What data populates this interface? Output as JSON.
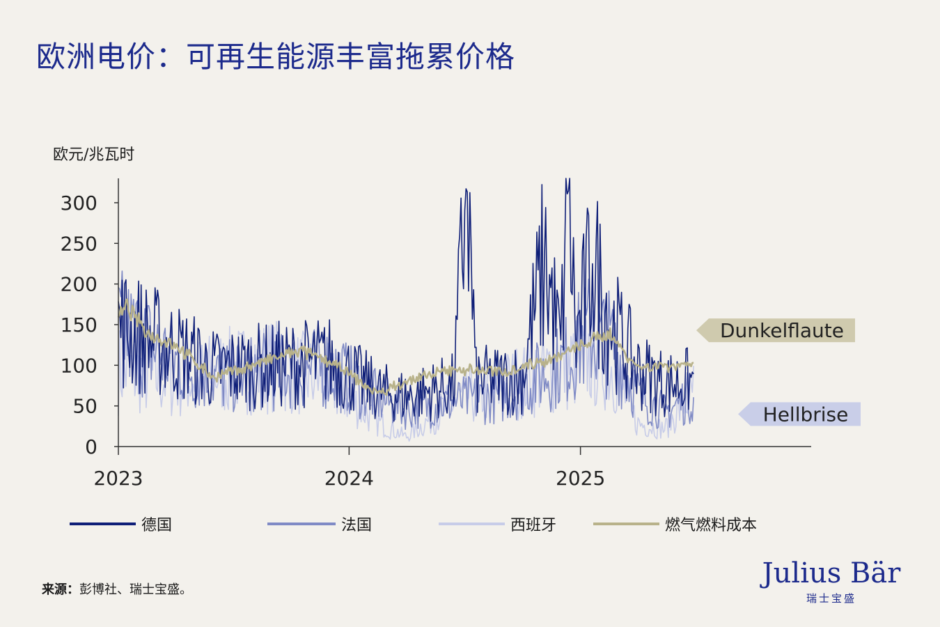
{
  "title": "欧洲电价：可再生能源丰富拖累价格",
  "source": {
    "label": "来源：",
    "text": "彭博社、瑞士宝盛。"
  },
  "logo": {
    "en": "Julius Bär",
    "cn": "瑞士宝盛"
  },
  "chart_data": {
    "type": "line",
    "ylabel": "欧元/兆瓦时",
    "ylim": [
      0,
      330
    ],
    "yticks": [
      0,
      50,
      100,
      150,
      200,
      250,
      300
    ],
    "xlim": [
      "2023-01-01",
      "2026-01-01"
    ],
    "xticks": [
      "2023",
      "2024",
      "2025"
    ],
    "grid": false,
    "legend": "bottom",
    "annotations": [
      {
        "text": "Dunkelflaute",
        "y": 143,
        "color": "#cfcaae"
      },
      {
        "text": "Hellbrise",
        "y": 40,
        "color": "#c9cee8"
      }
    ],
    "series": [
      {
        "name": "德国",
        "color": "#0f1f78",
        "keypoints": [
          [
            "2023-01-01",
            150
          ],
          [
            "2023-04-01",
            118
          ],
          [
            "2023-06-01",
            95
          ],
          [
            "2023-09-01",
            100
          ],
          [
            "2023-12-01",
            105
          ],
          [
            "2024-02-15",
            68
          ],
          [
            "2024-04-01",
            62
          ],
          [
            "2024-06-15",
            75
          ],
          [
            "2024-07-05",
            330
          ],
          [
            "2024-07-20",
            80
          ],
          [
            "2024-10-01",
            85
          ],
          [
            "2024-11-05",
            230
          ],
          [
            "2024-12-01",
            120
          ],
          [
            "2024-12-12",
            330
          ],
          [
            "2024-12-25",
            130
          ],
          [
            "2025-01-20",
            225
          ],
          [
            "2025-02-20",
            150
          ],
          [
            "2025-04-01",
            95
          ],
          [
            "2025-05-15",
            78
          ],
          [
            "2025-06-30",
            80
          ]
        ]
      },
      {
        "name": "法国",
        "color": "#7f8ac5",
        "keypoints": [
          [
            "2023-01-01",
            145
          ],
          [
            "2023-04-01",
            105
          ],
          [
            "2023-06-01",
            85
          ],
          [
            "2023-09-01",
            92
          ],
          [
            "2023-12-01",
            98
          ],
          [
            "2024-02-15",
            60
          ],
          [
            "2024-04-01",
            45
          ],
          [
            "2024-06-15",
            55
          ],
          [
            "2024-09-01",
            62
          ],
          [
            "2024-12-01",
            100
          ],
          [
            "2025-01-15",
            140
          ],
          [
            "2025-02-20",
            125
          ],
          [
            "2025-04-01",
            65
          ],
          [
            "2025-05-15",
            42
          ],
          [
            "2025-06-30",
            65
          ]
        ]
      },
      {
        "name": "西班牙",
        "color": "#c7cce8",
        "keypoints": [
          [
            "2023-01-01",
            95
          ],
          [
            "2023-04-01",
            80
          ],
          [
            "2023-06-01",
            90
          ],
          [
            "2023-09-01",
            100
          ],
          [
            "2023-12-01",
            80
          ],
          [
            "2024-02-15",
            30
          ],
          [
            "2024-04-01",
            12
          ],
          [
            "2024-06-15",
            55
          ],
          [
            "2024-09-01",
            75
          ],
          [
            "2024-12-01",
            95
          ],
          [
            "2025-01-15",
            110
          ],
          [
            "2025-02-20",
            100
          ],
          [
            "2025-04-01",
            28
          ],
          [
            "2025-05-15",
            22
          ],
          [
            "2025-06-30",
            70
          ]
        ]
      },
      {
        "name": "燃气燃料成本",
        "color": "#b8b28a",
        "keypoints": [
          [
            "2023-01-01",
            160
          ],
          [
            "2023-01-15",
            172
          ],
          [
            "2023-02-15",
            140
          ],
          [
            "2023-04-01",
            125
          ],
          [
            "2023-06-01",
            85
          ],
          [
            "2023-08-01",
            100
          ],
          [
            "2023-10-15",
            118
          ],
          [
            "2023-12-01",
            105
          ],
          [
            "2024-02-15",
            65
          ],
          [
            "2024-04-01",
            80
          ],
          [
            "2024-06-15",
            95
          ],
          [
            "2024-09-01",
            92
          ],
          [
            "2024-12-01",
            112
          ],
          [
            "2025-02-15",
            140
          ],
          [
            "2025-04-01",
            98
          ],
          [
            "2025-06-01",
            100
          ],
          [
            "2025-06-30",
            104
          ]
        ]
      }
    ]
  }
}
